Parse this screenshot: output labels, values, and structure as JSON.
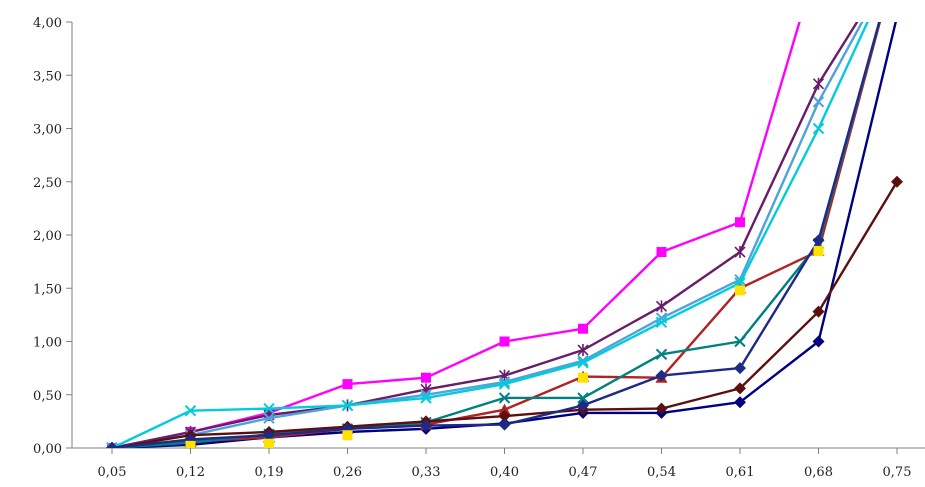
{
  "chart_data": {
    "type": "line",
    "title": "",
    "xlabel": "",
    "ylabel": "",
    "x": [
      0.05,
      0.12,
      0.19,
      0.26,
      0.33,
      0.4,
      0.47,
      0.54,
      0.61,
      0.68,
      0.75
    ],
    "x_tick_labels": [
      "0,05",
      "0,12",
      "0,19",
      "0,26",
      "0,33",
      "0,40",
      "0,47",
      "0,54",
      "0,61",
      "0,68",
      "0,75"
    ],
    "y_tick_labels": [
      "0,00",
      "0,50",
      "1,00",
      "1,50",
      "2,00",
      "2,50",
      "3,00",
      "3,50",
      "4,00"
    ],
    "y_ticks": [
      0,
      0.5,
      1.0,
      1.5,
      2.0,
      2.5,
      3.0,
      3.5,
      4.0
    ],
    "ylim": [
      0,
      4.0
    ],
    "grid": false,
    "legend": "none",
    "series": [
      {
        "color": "#000080",
        "marker": "diamond",
        "values": [
          0.0,
          0.03,
          0.1,
          0.15,
          0.18,
          0.23,
          0.33,
          0.33,
          0.43,
          1.0,
          4.05
        ]
      },
      {
        "color": "#FF00FF",
        "marker": "square",
        "values": [
          0.0,
          0.15,
          0.33,
          0.6,
          0.66,
          1.0,
          1.12,
          1.84,
          2.12,
          4.6,
          null
        ]
      },
      {
        "color": "#B22222",
        "marker": "triangle",
        "values": [
          0.0,
          0.06,
          0.1,
          0.18,
          0.22,
          0.36,
          0.67,
          0.66,
          1.5,
          1.85,
          4.6
        ]
      },
      {
        "color": "#008080",
        "marker": "x",
        "values": [
          0.0,
          0.05,
          0.13,
          0.18,
          0.24,
          0.47,
          0.47,
          0.88,
          1.0,
          1.92,
          4.6
        ]
      },
      {
        "color": "#6A1B6A",
        "marker": "star",
        "values": [
          0.0,
          0.15,
          0.31,
          0.4,
          0.55,
          0.68,
          0.92,
          1.33,
          1.84,
          3.42,
          4.6
        ]
      },
      {
        "color": "#4FA3D9",
        "marker": "x",
        "values": [
          0.0,
          0.12,
          0.28,
          0.4,
          0.5,
          0.62,
          0.82,
          1.22,
          1.58,
          3.25,
          4.6
        ]
      },
      {
        "color": "#00CCDD",
        "marker": "x",
        "values": [
          0.0,
          0.35,
          0.37,
          0.4,
          0.47,
          0.6,
          0.8,
          1.18,
          1.55,
          3.0,
          4.6
        ]
      },
      {
        "color": "#5B0F0F",
        "marker": "diamond",
        "values": [
          0.0,
          0.12,
          0.15,
          0.2,
          0.25,
          0.3,
          0.36,
          0.37,
          0.56,
          1.28,
          2.5
        ]
      },
      {
        "color": "#1E2A88",
        "marker": "diamond",
        "values": [
          0.0,
          0.08,
          0.12,
          0.18,
          0.21,
          0.22,
          0.4,
          0.68,
          0.75,
          1.95,
          4.6
        ]
      },
      {
        "color": "#FFE100",
        "marker": "square",
        "values": [
          null,
          0.02,
          0.04,
          0.12,
          null,
          null,
          0.66,
          null,
          1.48,
          1.85,
          null
        ]
      }
    ]
  }
}
